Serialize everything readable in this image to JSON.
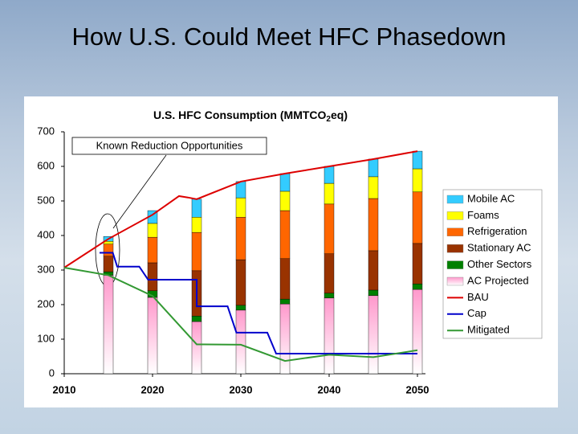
{
  "slide_title": "How U.S. Could Meet HFC Phasedown",
  "chart_data": {
    "type": "bar",
    "stacked": true,
    "title": {
      "main": "U.S. HFC Consumption (MMTCO",
      "subscript": "2",
      "end": "eq)"
    },
    "annotation": "Known Reduction Opportunities",
    "x": [
      2015,
      2020,
      2025,
      2030,
      2035,
      2040,
      2045,
      2050
    ],
    "xlim": [
      2010,
      2050
    ],
    "xticks": [
      2010,
      2020,
      2030,
      2040,
      2050
    ],
    "ylim": [
      0,
      700
    ],
    "yticks": [
      0,
      100,
      200,
      300,
      400,
      500,
      600,
      700
    ],
    "grid": false,
    "legend": "right",
    "series": [
      {
        "name": "Mobile AC",
        "type": "bar",
        "color": "#33ccff",
        "values": [
          14,
          37,
          52,
          47,
          51,
          49,
          51,
          51
        ]
      },
      {
        "name": "Foams",
        "type": "bar",
        "color": "#ffff00",
        "values": [
          8,
          40,
          44,
          56,
          56,
          60,
          63,
          67
        ]
      },
      {
        "name": "Refrigeration",
        "type": "bar",
        "color": "#ff6600",
        "values": [
          35,
          74,
          111,
          123,
          139,
          144,
          151,
          149
        ]
      },
      {
        "name": "Stationary AC",
        "type": "bar",
        "color": "#993300",
        "values": [
          45,
          81,
          131,
          132,
          117,
          114,
          114,
          117
        ]
      },
      {
        "name": "Other Sectors",
        "type": "bar",
        "color": "#008000",
        "values": [
          10,
          19,
          16,
          14,
          14,
          14,
          16,
          16
        ]
      },
      {
        "name": "AC Projected",
        "type": "bar",
        "color": "#ff99cc",
        "fill_style": "gradient",
        "values": [
          285,
          221,
          151,
          184,
          202,
          219,
          226,
          244
        ]
      },
      {
        "name": "BAU",
        "type": "line",
        "color": "#dd0000",
        "x": [
          2010,
          2015,
          2020,
          2023,
          2024,
          2025,
          2030,
          2035,
          2040,
          2045,
          2050
        ],
        "values": [
          307,
          390,
          460,
          514,
          510,
          505,
          556,
          579,
          600,
          621,
          644
        ]
      },
      {
        "name": "Cap",
        "type": "line",
        "color": "#0000cc",
        "x": [
          2014,
          2015.5,
          2016,
          2018.5,
          2019.5,
          2025,
          2025,
          2028.5,
          2029.5,
          2033,
          2034,
          2050
        ],
        "values": [
          350,
          350,
          310,
          310,
          272,
          272,
          195,
          195,
          119,
          119,
          58,
          58
        ]
      },
      {
        "name": "Mitigated",
        "type": "line",
        "color": "#339933",
        "x": [
          2010,
          2015,
          2020,
          2025,
          2030,
          2035,
          2040,
          2045,
          2050
        ],
        "values": [
          307,
          285,
          225,
          85,
          84,
          37,
          55,
          48,
          68
        ]
      }
    ]
  }
}
